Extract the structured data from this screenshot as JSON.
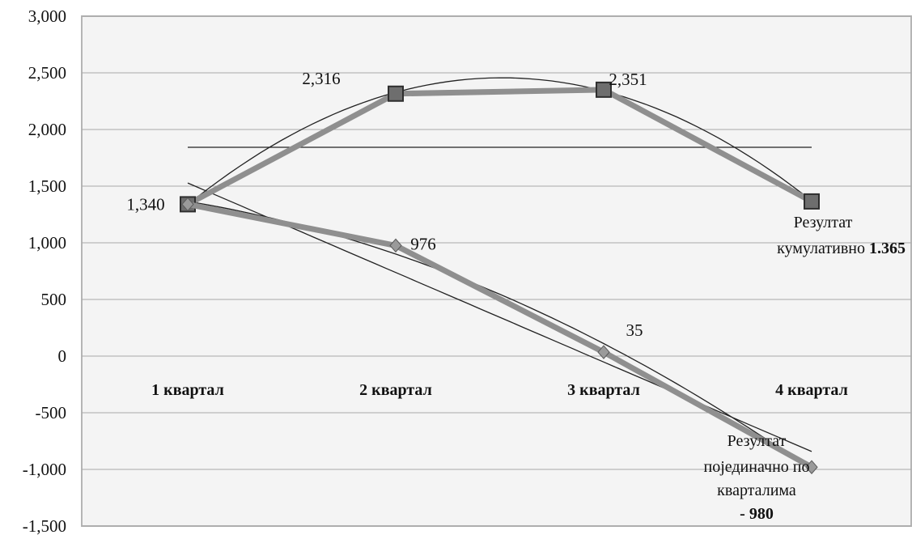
{
  "chart_data": {
    "type": "line",
    "categories": [
      "1 квартал",
      "2 квартал",
      "3 квартал",
      "4 квартал"
    ],
    "ylim": [
      -1500,
      3000
    ],
    "ytick_labels": [
      "-1,500",
      "-1,000",
      "-500",
      "0",
      "500",
      "1,000",
      "1,500",
      "2,000",
      "2,500",
      "3,000"
    ],
    "grid": true,
    "series": [
      {
        "values": [
          1340,
          2316,
          2351,
          1365
        ],
        "data_labels": [
          "1,340",
          "2,316",
          "2,351",
          ""
        ],
        "marker": "square",
        "color": "#8f8f8f"
      },
      {
        "values": [
          1340,
          976,
          35,
          -980
        ],
        "data_labels": [
          "",
          "976",
          "35",
          ""
        ],
        "marker": "diamond",
        "color": "#8f8f8f"
      }
    ],
    "trendlines": [
      {
        "kind": "polynomial",
        "series": 0
      },
      {
        "kind": "mean",
        "series": 0
      },
      {
        "kind": "linear",
        "series": 1
      },
      {
        "kind": "polynomial",
        "series": 1
      }
    ],
    "annotations": {
      "cumulative": {
        "line1": "Резултат",
        "line2_text": "кумулативно ",
        "line2_bold": "1.365"
      },
      "quarterly": {
        "line1": "Резултат",
        "line2": "појединачно по",
        "line3": "кварталима",
        "line4_bold": "- 980"
      }
    }
  }
}
